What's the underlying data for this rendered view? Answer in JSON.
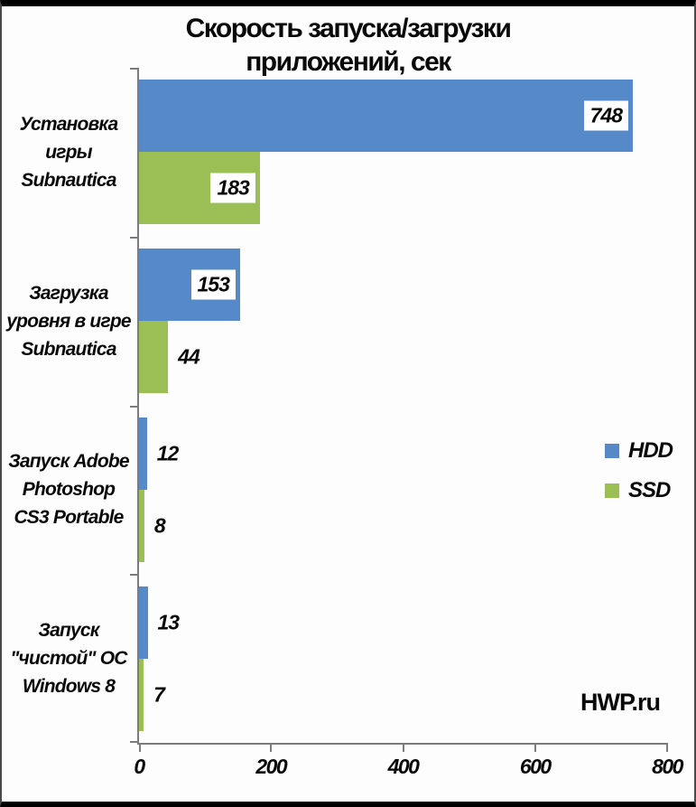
{
  "title": "Скорость запуска/загрузки приложений, сек",
  "watermark": "HWP.ru",
  "colors": {
    "hdd": "#5589c8",
    "ssd": "#9cbf55",
    "axis": "#7c7c7c",
    "text": "#090909",
    "label_box_background": "#ffffff",
    "frame_border": "#000000"
  },
  "chart_data": {
    "type": "bar",
    "orientation": "horizontal",
    "title": "Скорость запуска/загрузки приложений, сек",
    "categories": [
      "Установка\nигры\nSubnautica",
      "Загрузка\nуровня в игре\nSubnautica",
      "Запуск Adobe\nPhotoshop\nCS3 Portable",
      "Запуск\n\"чистой\" ОС\nWindows 8"
    ],
    "series": [
      {
        "name": "HDD",
        "color": "#5589c8",
        "values": [
          748,
          153,
          12,
          13
        ]
      },
      {
        "name": "SSD",
        "color": "#9cbf55",
        "values": [
          183,
          44,
          8,
          7
        ]
      }
    ],
    "xlabel": "",
    "ylabel": "",
    "xlim": [
      0,
      800
    ],
    "x_ticks": [
      0,
      200,
      400,
      600,
      800
    ],
    "grid": false,
    "legend_position": "right-middle",
    "value_labels": "shown, boxed in white when inside bar"
  }
}
